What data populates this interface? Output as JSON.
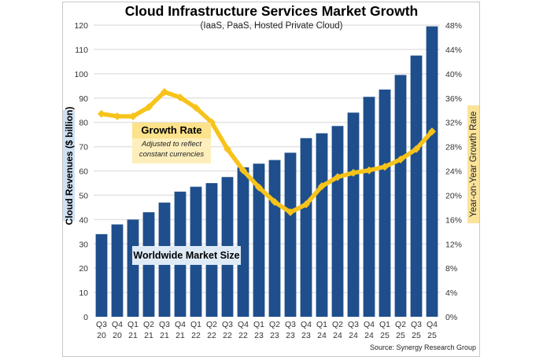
{
  "chart_data": {
    "type": "bar",
    "title": "Cloud Infrastructure Services Market Growth",
    "subtitle": "(IaaS, PaaS, Hosted Private Cloud)",
    "categories": [
      [
        "Q3",
        "20"
      ],
      [
        "Q4",
        "20"
      ],
      [
        "Q1",
        "21"
      ],
      [
        "Q2",
        "21"
      ],
      [
        "Q3",
        "21"
      ],
      [
        "Q4",
        "21"
      ],
      [
        "Q1",
        "22"
      ],
      [
        "Q2",
        "22"
      ],
      [
        "Q3",
        "22"
      ],
      [
        "Q4",
        "22"
      ],
      [
        "Q1",
        "23"
      ],
      [
        "Q2",
        "23"
      ],
      [
        "Q3",
        "23"
      ],
      [
        "Q4",
        "23"
      ],
      [
        "Q1",
        "24"
      ],
      [
        "Q2",
        "24"
      ],
      [
        "Q3",
        "24"
      ],
      [
        "Q4",
        "24"
      ],
      [
        "Q1",
        "25"
      ],
      [
        "Q2",
        "25"
      ],
      [
        "Q3",
        "25"
      ],
      [
        "Q4",
        "25"
      ]
    ],
    "series": [
      {
        "name": "Worldwide Market Size",
        "type": "bar",
        "axis": "left",
        "color": "#1f4e8c",
        "values": [
          34,
          38,
          40,
          43,
          47,
          51.5,
          53.5,
          55,
          57.5,
          61.5,
          63,
          64.5,
          67.5,
          73.5,
          75.5,
          78.5,
          84,
          90.5,
          93.5,
          99.5,
          107.5,
          119.5
        ]
      },
      {
        "name": "Growth Rate",
        "type": "line",
        "axis": "right",
        "color": "#f7c31b",
        "values": [
          33.4,
          33.0,
          33.0,
          34.5,
          37.0,
          36.1,
          34.4,
          32.0,
          27.6,
          24.1,
          21.3,
          18.9,
          17.2,
          18.5,
          21.5,
          23.0,
          23.7,
          24.1,
          24.7,
          25.9,
          27.6,
          30.5
        ]
      }
    ],
    "ylabel": "Cloud Revenues ($ billion)",
    "ylabel_right": "Year-on-Year Growth Rate",
    "ylim": [
      0,
      120
    ],
    "ylim_right": [
      0,
      48
    ],
    "yticks": [
      0,
      10,
      20,
      30,
      40,
      50,
      60,
      70,
      80,
      90,
      100,
      110,
      120
    ],
    "yticks_right": [
      "0%",
      "4%",
      "8%",
      "12%",
      "16%",
      "20%",
      "24%",
      "28%",
      "32%",
      "36%",
      "40%",
      "44%",
      "48%"
    ],
    "grid": true,
    "annotations": {
      "growth_title": "Growth Rate",
      "growth_note_line1": "Adjusted to reflect",
      "growth_note_line2": "constant currencies",
      "market_label": "Worldwide Market Size"
    },
    "source": "Source: Synergy Research Group"
  }
}
